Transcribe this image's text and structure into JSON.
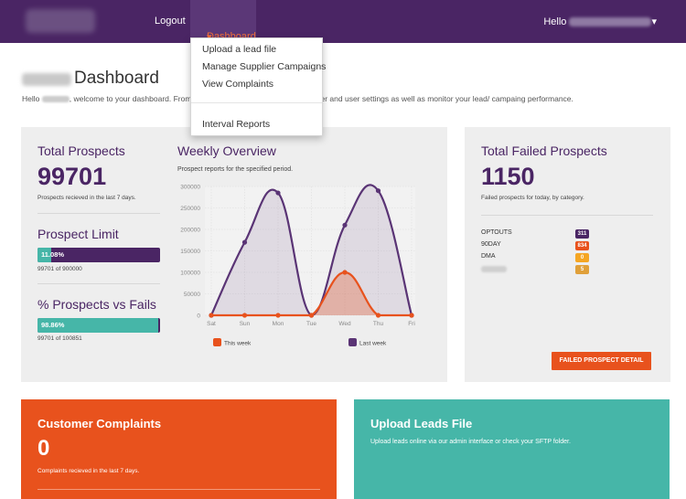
{
  "nav": {
    "logout": "Logout",
    "dashboard": "Dashboard",
    "dashboard_caret": "▾",
    "hello": "Hello",
    "user_caret": "▾"
  },
  "dropdown": {
    "items": [
      "Upload a lead file",
      "Manage Supplier Campaigns",
      "View Complaints",
      "Interval Reports"
    ]
  },
  "page": {
    "title": "Dashboard",
    "welcome_a": "Hello",
    "welcome_b": ", welcome to your dashboard. From H",
    "welcome_c": "plier and user settings as well as monitor your lead/ campaing performance."
  },
  "total_prospects": {
    "title": "Total Prospects",
    "value": "99701",
    "sub": "Prospects recieved in the last 7 days."
  },
  "prospect_limit": {
    "title": "Prospect Limit",
    "percent_label": "11.08%",
    "percent": 11.08,
    "sub": "99701 of 900000"
  },
  "prospects_vs_fails": {
    "title": "% Prospects vs Fails",
    "percent_label": "98.86%",
    "percent": 98.86,
    "sub": "99701 of 100851"
  },
  "weekly": {
    "title": "Weekly Overview",
    "subtitle": "Prospect reports for the specified period."
  },
  "chart_data": {
    "type": "area",
    "title": "Weekly Overview",
    "subtitle": "Prospect reports for the specified period.",
    "categories": [
      "Sat",
      "Sun",
      "Mon",
      "Tue",
      "Wed",
      "Thu",
      "Fri"
    ],
    "yticks": [
      "300000",
      "250000",
      "200000",
      "150000",
      "100000",
      "50000",
      "0"
    ],
    "ylim": [
      0,
      300000
    ],
    "grid": true,
    "legend_position": "bottom",
    "series": [
      {
        "name": "This week",
        "color": "#e8521d",
        "values": [
          0,
          0,
          0,
          0,
          100000,
          0,
          0
        ]
      },
      {
        "name": "Last week",
        "color": "#5a3475",
        "values": [
          0,
          170000,
          285000,
          0,
          210000,
          290000,
          0
        ]
      }
    ]
  },
  "failed": {
    "title": "Total Failed Prospects",
    "value": "1150",
    "sub": "Failed prospects for today, by category.",
    "rows": [
      {
        "label": "OPTOUTS",
        "count": "311",
        "color": "#4a2564"
      },
      {
        "label": "90DAY",
        "count": "834",
        "color": "#e8521d"
      },
      {
        "label": "DMA",
        "count": "0",
        "color": "#f5a623"
      },
      {
        "label": "",
        "count": "5",
        "color": "#e0a03a"
      }
    ],
    "button": "FAILED PROSPECT DETAIL"
  },
  "complaints": {
    "title": "Customer Complaints",
    "value": "0",
    "sub": "Complaints recieved in the last 7 days.",
    "color": "#e8521d"
  },
  "upload": {
    "title": "Upload Leads File",
    "sub": "Upload leads online via our admin interface or check your SFTP folder.",
    "color": "#46b6a8"
  }
}
